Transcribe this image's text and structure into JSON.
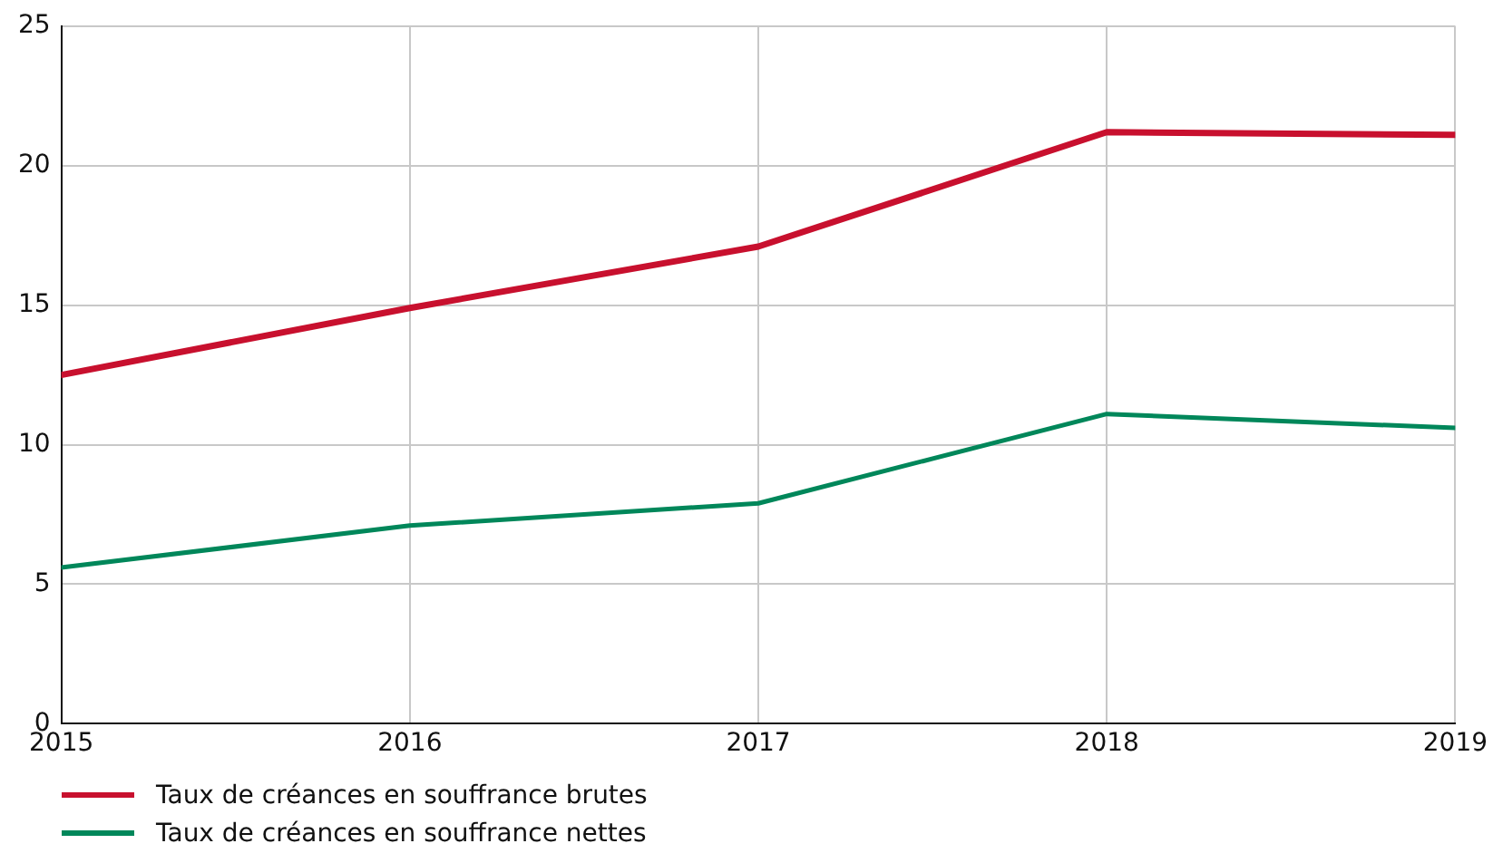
{
  "chart_data": {
    "type": "line",
    "x": [
      2015,
      2016,
      2017,
      2018,
      2019
    ],
    "xlim": [
      2015,
      2019
    ],
    "xticks": [
      2015,
      2016,
      2017,
      2018,
      2019
    ],
    "ylim": [
      0,
      25
    ],
    "yticks": [
      0,
      5,
      10,
      15,
      20,
      25
    ],
    "grid": true,
    "legend": "bottom left",
    "marker": "none",
    "line_style": "solid",
    "series": [
      {
        "name": "Taux de créances en souffrance brutes",
        "color": "#c8102e",
        "values": [
          12.5,
          14.9,
          17.1,
          21.2,
          21.1
        ]
      },
      {
        "name": "Taux de créances en souffrance nettes",
        "color": "#00875a",
        "values": [
          5.6,
          7.1,
          7.9,
          11.1,
          10.6
        ]
      }
    ]
  }
}
